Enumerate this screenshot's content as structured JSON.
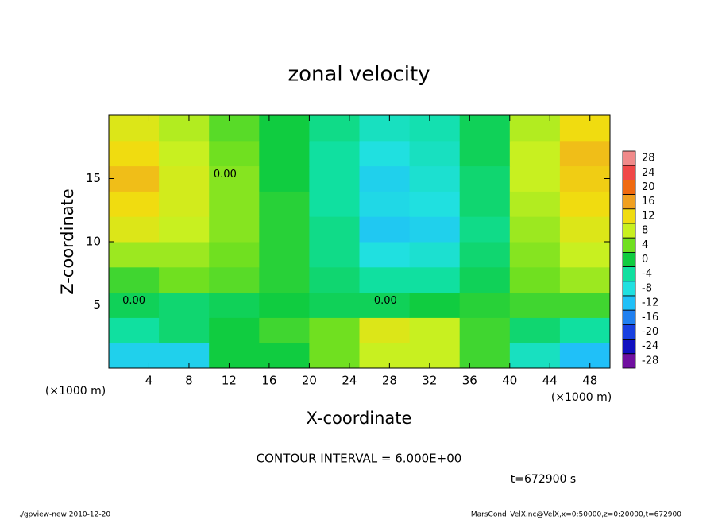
{
  "chart_data": {
    "type": "contour",
    "title": "zonal velocity",
    "xlabel": "X-coordinate",
    "ylabel": "Z-coordinate",
    "x_unit": "(×1000 m)",
    "xlim": [
      0,
      50
    ],
    "ylim": [
      0,
      20
    ],
    "xticks": [
      4,
      8,
      12,
      16,
      20,
      24,
      28,
      32,
      36,
      40,
      44,
      48
    ],
    "yticks": [
      5,
      10,
      15
    ],
    "xbins": [
      0,
      5,
      10,
      15,
      20,
      25,
      30,
      35,
      40,
      45,
      50
    ],
    "ybins": [
      0,
      2,
      4,
      6,
      8,
      10,
      12,
      14,
      16,
      18,
      20
    ],
    "values": [
      [
        -10,
        -10,
        0,
        0,
        4,
        8,
        8,
        2,
        -6,
        -12
      ],
      [
        -4,
        -2,
        0,
        2,
        4,
        10,
        8,
        2,
        -2,
        -4
      ],
      [
        -1,
        -2,
        -1,
        0,
        -1,
        -1,
        0,
        1,
        2,
        2
      ],
      [
        2,
        4,
        3,
        1,
        -2,
        -4,
        -4,
        -1,
        4,
        6
      ],
      [
        6,
        6,
        4,
        1,
        -3,
        -8,
        -7,
        -2,
        5,
        8
      ],
      [
        10,
        8,
        5,
        1,
        -3,
        -11,
        -10,
        -3,
        6,
        10
      ],
      [
        12,
        9,
        5,
        1,
        -4,
        -9,
        -8,
        -2,
        7,
        12
      ],
      [
        14,
        9,
        5,
        0,
        -4,
        -10,
        -7,
        -2,
        8,
        13
      ],
      [
        12,
        8,
        4,
        0,
        -4,
        -8,
        -6,
        -1,
        8,
        14
      ],
      [
        10,
        7,
        3,
        0,
        -3,
        -6,
        -5,
        -1,
        7,
        12
      ]
    ],
    "levels": [
      28,
      24,
      20,
      16,
      12,
      8,
      4,
      0,
      -4,
      -8,
      -12,
      -16,
      -20,
      -24,
      -28
    ],
    "colors": [
      "#f08a8a",
      "#f04848",
      "#f06a10",
      "#f0a020",
      "#f0dc10",
      "#c8f020",
      "#70e020",
      "#10cc40",
      "#10e0a0",
      "#20e0e0",
      "#20c0f8",
      "#2080f0",
      "#1840e0",
      "#1010c0",
      "#7010a0"
    ],
    "contour_labels": [
      {
        "text": "0.00",
        "x": 2.5,
        "y": 5.3
      },
      {
        "text": "0.00",
        "x": 11.6,
        "y": 15.3
      },
      {
        "text": "0.00",
        "x": 27.6,
        "y": 5.3
      }
    ],
    "contour_interval": "CONTOUR INTERVAL = 6.000E+00",
    "time": "t=672900 s",
    "footer_left": "./gpview-new  2010-12-20",
    "footer_right": "MarsCond_VelX.nc@VelX,x=0:50000,z=0:20000,t=672900"
  }
}
